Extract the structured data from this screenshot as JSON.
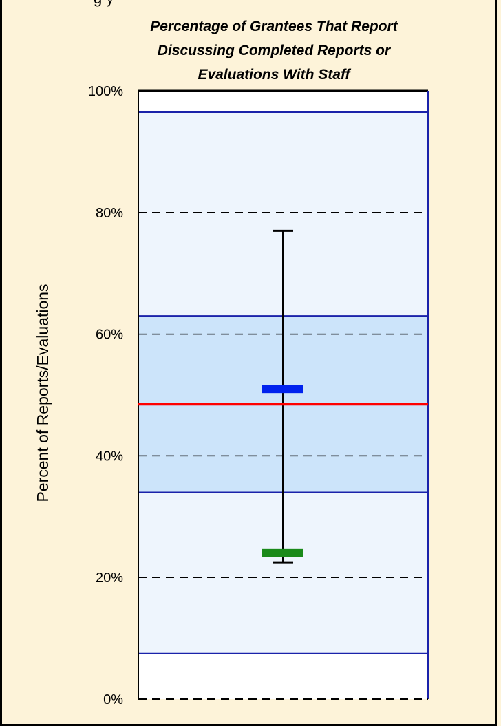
{
  "header": {
    "cut_text": "g  y"
  },
  "chart_data": {
    "type": "box",
    "title_lines": [
      "Percentage of Grantees That Report",
      "Discussing Completed Reports or",
      "Evaluations With Staff"
    ],
    "ylabel": "Percent of Reports/Evaluations",
    "ylim": [
      0,
      100
    ],
    "y_ticks": [
      0,
      20,
      40,
      60,
      80,
      100
    ],
    "y_tick_labels": [
      "0%",
      "20%",
      "40%",
      "60%",
      "80%",
      "100%"
    ],
    "grid": "dashed horizontal at 20, 40, 60, 80",
    "outer_band": {
      "low": 7.5,
      "high": 96.5,
      "color": "#eef5fd"
    },
    "inner_band": {
      "low": 34,
      "high": 63,
      "color": "#cce4fa"
    },
    "whisker": {
      "low": 22.5,
      "high": 77
    },
    "reference_line": {
      "value": 48.5,
      "color": "#ff0000"
    },
    "markers": [
      {
        "value": 51,
        "color": "#0022ee"
      },
      {
        "value": 24,
        "color": "#1a8a1a"
      }
    ],
    "band_edge_color": "#1a22aa"
  }
}
